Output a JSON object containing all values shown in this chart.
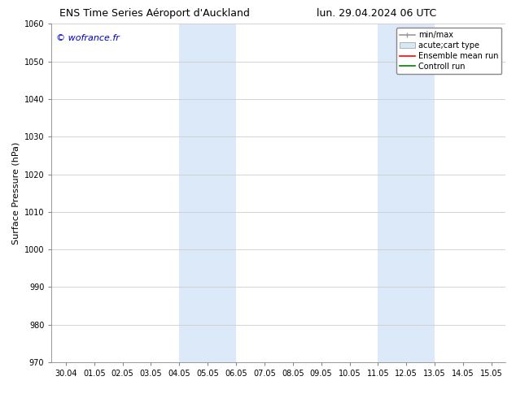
{
  "title_left": "ENS Time Series Aéroport d'Auckland",
  "title_right": "lun. 29.04.2024 06 UTC",
  "ylabel": "Surface Pressure (hPa)",
  "ylim": [
    970,
    1060
  ],
  "yticks": [
    970,
    980,
    990,
    1000,
    1010,
    1020,
    1030,
    1040,
    1050,
    1060
  ],
  "xtick_labels": [
    "30.04",
    "01.05",
    "02.05",
    "03.05",
    "04.05",
    "05.05",
    "06.05",
    "07.05",
    "08.05",
    "09.05",
    "10.05",
    "11.05",
    "12.05",
    "13.05",
    "14.05",
    "15.05"
  ],
  "shaded_regions": [
    {
      "xstart": 4.0,
      "xend": 6.0
    },
    {
      "xstart": 11.0,
      "xend": 13.0
    }
  ],
  "shaded_color": "#dce9f8",
  "watermark": "© wofrance.fr",
  "watermark_color": "#0000bb",
  "legend_entries": [
    {
      "label": "min/max",
      "color": "#999999",
      "lw": 1.2,
      "style": "minmax"
    },
    {
      "label": "acute;cart type",
      "color": "#d8e8f5",
      "lw": 6,
      "style": "bar"
    },
    {
      "label": "Ensemble mean run",
      "color": "red",
      "lw": 1.2,
      "style": "line"
    },
    {
      "label": "Controll run",
      "color": "green",
      "lw": 1.2,
      "style": "line"
    }
  ],
  "bg_color": "#ffffff",
  "grid_color": "#cccccc",
  "title_fontsize": 9,
  "tick_fontsize": 7,
  "ylabel_fontsize": 8,
  "legend_fontsize": 7,
  "watermark_fontsize": 8
}
